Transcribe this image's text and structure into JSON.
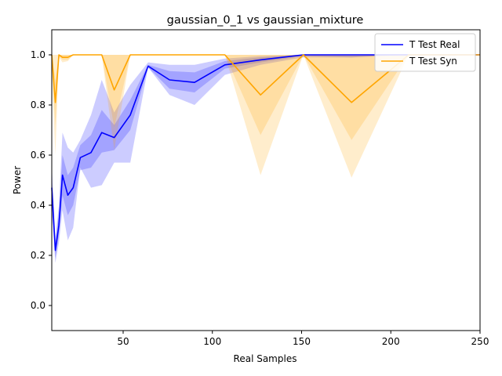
{
  "chart_data": {
    "type": "line",
    "title": "gaussian_0_1 vs gaussian_mixture",
    "xlabel": "Real Samples",
    "ylabel": "Power",
    "xlim": [
      10,
      250
    ],
    "ylim": [
      -0.1,
      1.1
    ],
    "xticks": [
      50,
      100,
      150,
      200,
      250
    ],
    "yticks": [
      0.0,
      0.2,
      0.4,
      0.6,
      0.8,
      1.0
    ],
    "xtick_labels": [
      "50",
      "100",
      "150",
      "200",
      "250"
    ],
    "ytick_labels": [
      "0.0",
      "0.2",
      "0.4",
      "0.6",
      "0.8",
      "1.0"
    ],
    "grid": false,
    "legend_position": "top-right",
    "series": [
      {
        "name": "T Test Real",
        "color": "#0000ff",
        "x": [
          10,
          12,
          14,
          16,
          19,
          22,
          26,
          32,
          38,
          45,
          54,
          64,
          76,
          90,
          107,
          127,
          151,
          178,
          210,
          250
        ],
        "values": [
          0.47,
          0.22,
          0.32,
          0.52,
          0.44,
          0.47,
          0.59,
          0.61,
          0.69,
          0.67,
          0.76,
          0.955,
          0.9,
          0.89,
          0.96,
          0.98,
          1.0,
          1.0,
          1.0,
          1.0
        ],
        "band_inner_low": [
          0.42,
          0.19,
          0.28,
          0.44,
          0.36,
          0.4,
          0.54,
          0.55,
          0.61,
          0.62,
          0.7,
          0.95,
          0.865,
          0.85,
          0.945,
          0.97,
          0.995,
          0.99,
          1.0,
          1.0
        ],
        "band_inner_high": [
          0.52,
          0.25,
          0.37,
          0.6,
          0.52,
          0.55,
          0.64,
          0.68,
          0.78,
          0.72,
          0.82,
          0.96,
          0.935,
          0.93,
          0.975,
          0.99,
          1.0,
          1.0,
          1.0,
          1.0
        ],
        "band_outer_low": [
          0.38,
          0.17,
          0.25,
          0.38,
          0.26,
          0.31,
          0.55,
          0.47,
          0.48,
          0.57,
          0.57,
          0.95,
          0.84,
          0.8,
          0.92,
          0.96,
          0.99,
          0.99,
          1.0,
          1.0
        ],
        "band_outer_high": [
          0.56,
          0.27,
          0.4,
          0.69,
          0.63,
          0.61,
          0.66,
          0.76,
          0.9,
          0.77,
          0.88,
          0.97,
          0.96,
          0.96,
          0.985,
          0.995,
          1.0,
          1.0,
          1.0,
          1.0
        ]
      },
      {
        "name": "T Test Syn",
        "color": "#ffa500",
        "x": [
          10,
          12,
          14,
          16,
          19,
          22,
          26,
          32,
          38,
          45,
          54,
          64,
          76,
          90,
          107,
          127,
          151,
          178,
          210,
          250
        ],
        "values": [
          1.0,
          0.81,
          1.0,
          0.99,
          0.99,
          1.0,
          1.0,
          1.0,
          1.0,
          0.86,
          1.0,
          1.0,
          1.0,
          1.0,
          1.0,
          0.84,
          1.0,
          0.81,
          1.0,
          1.0
        ],
        "band_inner_low": [
          0.97,
          0.72,
          0.995,
          0.98,
          0.98,
          1.0,
          1.0,
          1.0,
          1.0,
          0.71,
          1.0,
          1.0,
          1.0,
          1.0,
          1.0,
          0.68,
          1.0,
          0.66,
          1.0,
          1.0
        ],
        "band_inner_high": [
          1.0,
          0.9,
          1.0,
          1.0,
          1.0,
          1.0,
          1.0,
          1.0,
          1.0,
          1.0,
          1.0,
          1.0,
          1.0,
          1.0,
          1.0,
          1.0,
          1.0,
          1.0,
          1.0,
          1.0
        ],
        "band_outer_low": [
          0.95,
          0.6,
          0.99,
          0.97,
          0.975,
          1.0,
          1.0,
          1.0,
          1.0,
          0.62,
          1.0,
          1.0,
          1.0,
          1.0,
          1.0,
          0.52,
          1.0,
          0.51,
          1.0,
          1.0
        ],
        "band_outer_high": [
          1.0,
          1.0,
          1.0,
          1.0,
          1.0,
          1.0,
          1.0,
          1.0,
          1.0,
          1.0,
          1.0,
          1.0,
          1.0,
          1.0,
          1.0,
          1.0,
          1.0,
          1.0,
          1.0,
          1.0
        ]
      }
    ]
  }
}
